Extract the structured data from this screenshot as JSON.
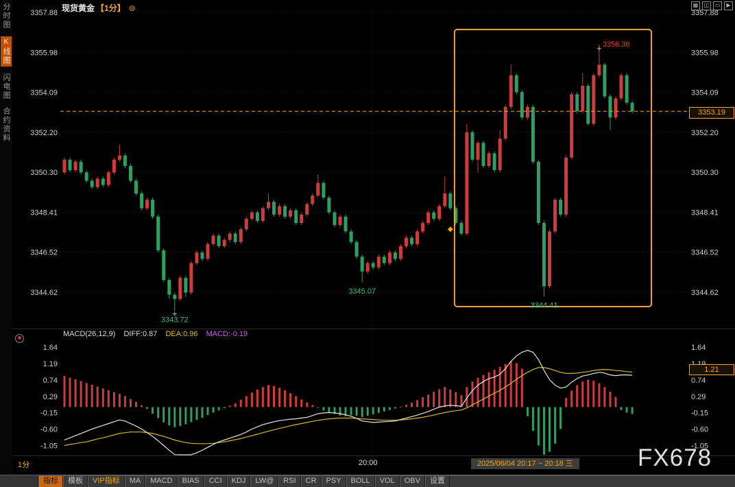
{
  "colors": {
    "up": "#cf3c3c",
    "down": "#2f9e62",
    "accent": "#f7a600",
    "diff_line": "#e6e6e6",
    "dea_line": "#d4b82a",
    "hist_up": "#cf3c3c",
    "hist_down": "#2f9e62",
    "annotation_high": "#f23c3c",
    "annotation_low": "#2fbf8f"
  },
  "header": {
    "title": "现货黄金",
    "period": "【1分】",
    "settings_icon": "⊜"
  },
  "window_controls": [
    "▦",
    "◫",
    "▭",
    "▶"
  ],
  "sidebar": {
    "items": [
      {
        "label": "分时图",
        "active": false
      },
      {
        "label": "K线图",
        "active": true
      },
      {
        "label": "闪电图",
        "active": false
      },
      {
        "label": "合约资料",
        "active": false
      }
    ]
  },
  "chart_data": {
    "type": "candlestick",
    "instrument": "现货黄金",
    "interval": "1分",
    "price_axis_labels": [
      "3357.88",
      "3355.98",
      "3354.09",
      "3352.20",
      "3350.30",
      "3348.41",
      "3346.52",
      "3344.62"
    ],
    "current_price": "3353.19",
    "highlight_box": {
      "start_index": 72,
      "end_index": 103
    },
    "annotations": [
      {
        "kind": "high",
        "text": "3356.36",
        "index": 97,
        "cross": true
      },
      {
        "kind": "low",
        "text": "3343.72",
        "index": 20,
        "cross": true
      },
      {
        "kind": "low",
        "text": "3345.07",
        "index": 54,
        "cross": false
      },
      {
        "kind": "low",
        "text": "3344.41",
        "index": 87,
        "cross": false
      },
      {
        "kind": "marker",
        "text": "",
        "index": 70,
        "price": 3347.6,
        "cross": false
      }
    ],
    "candles": [
      [
        3350.3,
        3351.0,
        3350.2,
        3350.9
      ],
      [
        3350.9,
        3351.0,
        3350.3,
        3350.4
      ],
      [
        3350.4,
        3350.9,
        3350.3,
        3350.8
      ],
      [
        3350.8,
        3350.9,
        3350.2,
        3350.3
      ],
      [
        3350.3,
        3350.4,
        3349.8,
        3349.9
      ],
      [
        3349.9,
        3350.0,
        3349.5,
        3349.6
      ],
      [
        3349.6,
        3350.1,
        3349.5,
        3350.0
      ],
      [
        3350.0,
        3350.1,
        3349.6,
        3349.7
      ],
      [
        3349.7,
        3350.4,
        3349.6,
        3350.3
      ],
      [
        3350.3,
        3351.0,
        3350.2,
        3350.9
      ],
      [
        3350.9,
        3351.6,
        3350.8,
        3351.1
      ],
      [
        3351.1,
        3351.2,
        3350.5,
        3350.6
      ],
      [
        3350.6,
        3350.7,
        3349.8,
        3349.9
      ],
      [
        3349.9,
        3350.0,
        3349.2,
        3349.3
      ],
      [
        3349.3,
        3349.4,
        3348.5,
        3348.6
      ],
      [
        3348.6,
        3349.1,
        3348.5,
        3349.0
      ],
      [
        3349.0,
        3349.1,
        3348.1,
        3348.2
      ],
      [
        3348.2,
        3348.3,
        3346.5,
        3346.6
      ],
      [
        3346.6,
        3346.7,
        3345.1,
        3345.2
      ],
      [
        3345.2,
        3345.3,
        3344.3,
        3344.5
      ],
      [
        3344.5,
        3344.6,
        3343.72,
        3344.3
      ],
      [
        3344.3,
        3345.4,
        3344.2,
        3345.3
      ],
      [
        3345.3,
        3345.4,
        3344.4,
        3344.6
      ],
      [
        3344.6,
        3346.1,
        3344.5,
        3346.0
      ],
      [
        3346.0,
        3346.6,
        3345.9,
        3346.5
      ],
      [
        3346.5,
        3346.6,
        3346.1,
        3346.2
      ],
      [
        3346.2,
        3347.0,
        3346.1,
        3346.9
      ],
      [
        3346.9,
        3347.4,
        3346.8,
        3347.3
      ],
      [
        3347.3,
        3347.4,
        3346.7,
        3346.8
      ],
      [
        3346.8,
        3347.2,
        3346.7,
        3347.1
      ],
      [
        3347.1,
        3347.5,
        3347.0,
        3347.4
      ],
      [
        3347.4,
        3347.5,
        3346.9,
        3347.0
      ],
      [
        3347.0,
        3347.7,
        3346.9,
        3347.6
      ],
      [
        3347.6,
        3348.2,
        3347.5,
        3348.1
      ],
      [
        3348.1,
        3348.5,
        3348.0,
        3348.4
      ],
      [
        3348.4,
        3348.5,
        3347.9,
        3348.0
      ],
      [
        3348.0,
        3348.7,
        3347.9,
        3348.6
      ],
      [
        3348.6,
        3349.3,
        3348.5,
        3348.9
      ],
      [
        3348.9,
        3349.0,
        3348.2,
        3348.3
      ],
      [
        3348.3,
        3348.8,
        3348.2,
        3348.7
      ],
      [
        3348.7,
        3348.8,
        3348.1,
        3348.2
      ],
      [
        3348.2,
        3348.6,
        3348.1,
        3348.5
      ],
      [
        3348.5,
        3348.6,
        3347.8,
        3347.9
      ],
      [
        3347.9,
        3348.4,
        3347.8,
        3348.3
      ],
      [
        3348.3,
        3348.9,
        3348.2,
        3348.8
      ],
      [
        3348.8,
        3349.3,
        3348.7,
        3349.2
      ],
      [
        3349.2,
        3350.2,
        3349.1,
        3349.8
      ],
      [
        3349.8,
        3349.9,
        3349.0,
        3349.1
      ],
      [
        3349.1,
        3349.2,
        3348.3,
        3348.4
      ],
      [
        3348.4,
        3348.5,
        3347.7,
        3347.8
      ],
      [
        3347.8,
        3348.3,
        3347.7,
        3348.2
      ],
      [
        3348.2,
        3348.3,
        3347.4,
        3347.5
      ],
      [
        3347.5,
        3347.6,
        3346.9,
        3347.0
      ],
      [
        3347.0,
        3347.1,
        3346.2,
        3346.3
      ],
      [
        3346.3,
        3346.4,
        3345.07,
        3345.6
      ],
      [
        3345.6,
        3346.1,
        3345.5,
        3346.0
      ],
      [
        3346.0,
        3346.1,
        3345.7,
        3345.8
      ],
      [
        3345.8,
        3346.4,
        3345.7,
        3346.3
      ],
      [
        3346.3,
        3346.4,
        3345.9,
        3346.0
      ],
      [
        3346.0,
        3346.6,
        3345.9,
        3346.5
      ],
      [
        3346.5,
        3346.6,
        3346.1,
        3346.2
      ],
      [
        3346.2,
        3346.9,
        3346.1,
        3346.8
      ],
      [
        3346.8,
        3347.3,
        3346.7,
        3347.2
      ],
      [
        3347.2,
        3347.3,
        3346.8,
        3346.9
      ],
      [
        3346.9,
        3347.6,
        3346.8,
        3347.5
      ],
      [
        3347.5,
        3348.0,
        3347.4,
        3347.9
      ],
      [
        3347.9,
        3348.5,
        3347.8,
        3348.4
      ],
      [
        3348.4,
        3348.5,
        3348.0,
        3348.1
      ],
      [
        3348.1,
        3348.8,
        3348.0,
        3348.7
      ],
      [
        3348.7,
        3350.1,
        3348.6,
        3349.3
      ],
      [
        3349.3,
        3349.4,
        3348.5,
        3348.6
      ],
      [
        3348.6,
        3348.7,
        3347.8,
        3347.9
      ],
      [
        3347.9,
        3348.0,
        3347.3,
        3347.4
      ],
      [
        3347.4,
        3352.6,
        3347.3,
        3352.2
      ],
      [
        3352.2,
        3352.3,
        3350.8,
        3350.9
      ],
      [
        3350.9,
        3351.8,
        3350.3,
        3351.7
      ],
      [
        3351.7,
        3351.8,
        3350.5,
        3350.6
      ],
      [
        3350.6,
        3351.3,
        3350.5,
        3351.2
      ],
      [
        3351.2,
        3351.3,
        3350.3,
        3350.4
      ],
      [
        3350.4,
        3352.3,
        3350.3,
        3351.9
      ],
      [
        3351.9,
        3353.5,
        3351.8,
        3353.4
      ],
      [
        3353.4,
        3355.4,
        3353.3,
        3354.9
      ],
      [
        3354.9,
        3355.0,
        3354.0,
        3354.1
      ],
      [
        3354.1,
        3354.2,
        3352.8,
        3352.9
      ],
      [
        3352.9,
        3353.5,
        3352.8,
        3353.4
      ],
      [
        3353.4,
        3353.5,
        3350.7,
        3350.8
      ],
      [
        3350.8,
        3350.9,
        3347.8,
        3347.9
      ],
      [
        3347.9,
        3348.0,
        3344.41,
        3344.9
      ],
      [
        3344.9,
        3347.6,
        3344.8,
        3347.5
      ],
      [
        3347.5,
        3349.1,
        3347.4,
        3349.0
      ],
      [
        3349.0,
        3349.1,
        3348.2,
        3348.3
      ],
      [
        3348.3,
        3351.1,
        3348.2,
        3351.0
      ],
      [
        3351.0,
        3354.1,
        3350.9,
        3354.0
      ],
      [
        3354.0,
        3354.1,
        3353.1,
        3353.2
      ],
      [
        3353.2,
        3355.0,
        3353.1,
        3354.4
      ],
      [
        3354.4,
        3354.5,
        3352.5,
        3352.6
      ],
      [
        3352.6,
        3355.0,
        3352.5,
        3354.9
      ],
      [
        3354.9,
        3356.36,
        3354.8,
        3355.4
      ],
      [
        3355.4,
        3355.5,
        3353.8,
        3353.9
      ],
      [
        3353.9,
        3354.0,
        3352.3,
        3352.9
      ],
      [
        3352.9,
        3353.9,
        3352.8,
        3353.8
      ],
      [
        3353.8,
        3355.0,
        3353.7,
        3354.9
      ],
      [
        3354.9,
        3355.0,
        3353.5,
        3353.6
      ],
      [
        3353.6,
        3353.7,
        3353.1,
        3353.19
      ]
    ],
    "macd": {
      "label": "MACD(26,12,9)",
      "diff_label": "DIFF:0.87",
      "dea_label": "DEA:0.96",
      "macd_label": "MACD:-0.19",
      "axis_labels": [
        "1.64",
        "1.19",
        "0.74",
        "0.29",
        "-0.15",
        "-0.60",
        "-1.05"
      ],
      "axis_highlight": "1.21",
      "hist": [
        0.85,
        0.8,
        0.76,
        0.71,
        0.66,
        0.61,
        0.56,
        0.51,
        0.46,
        0.41,
        0.36,
        0.3,
        0.22,
        0.14,
        0.05,
        -0.05,
        -0.18,
        -0.3,
        -0.42,
        -0.5,
        -0.55,
        -0.52,
        -0.47,
        -0.41,
        -0.35,
        -0.29,
        -0.22,
        -0.15,
        -0.09,
        -0.03,
        0.04,
        0.1,
        0.2,
        0.3,
        0.4,
        0.48,
        0.55,
        0.6,
        0.58,
        0.53,
        0.46,
        0.38,
        0.3,
        0.21,
        0.13,
        0.06,
        -0.02,
        -0.09,
        -0.14,
        -0.19,
        -0.23,
        -0.25,
        -0.22,
        -0.24,
        -0.27,
        -0.24,
        -0.2,
        -0.16,
        -0.12,
        -0.08,
        -0.04,
        0.01,
        0.06,
        0.12,
        0.19,
        0.27,
        0.34,
        0.42,
        0.49,
        0.55,
        0.48,
        0.41,
        0.33,
        0.55,
        0.7,
        0.8,
        0.88,
        0.95,
        1.02,
        1.1,
        1.18,
        1.25,
        1.2,
        1.05,
        -0.25,
        -0.65,
        -1.05,
        -1.3,
        -1.22,
        -1.0,
        -0.6,
        0.25,
        0.45,
        0.6,
        0.7,
        0.75,
        0.72,
        0.65,
        0.55,
        0.42,
        0.28,
        -0.08,
        -0.15,
        -0.19
      ],
      "diff": [
        -0.9,
        -0.84,
        -0.78,
        -0.72,
        -0.66,
        -0.6,
        -0.55,
        -0.5,
        -0.45,
        -0.4,
        -0.35,
        -0.38,
        -0.45,
        -0.52,
        -0.6,
        -0.7,
        -0.8,
        -0.92,
        -1.05,
        -1.18,
        -1.3,
        -1.35,
        -1.38,
        -1.32,
        -1.25,
        -1.18,
        -1.1,
        -1.02,
        -0.95,
        -0.9,
        -0.85,
        -0.8,
        -0.75,
        -0.68,
        -0.6,
        -0.54,
        -0.48,
        -0.44,
        -0.4,
        -0.37,
        -0.35,
        -0.33,
        -0.32,
        -0.3,
        -0.28,
        -0.23,
        -0.18,
        -0.16,
        -0.15,
        -0.16,
        -0.18,
        -0.21,
        -0.25,
        -0.31,
        -0.38,
        -0.4,
        -0.42,
        -0.41,
        -0.4,
        -0.39,
        -0.38,
        -0.34,
        -0.3,
        -0.26,
        -0.22,
        -0.17,
        -0.12,
        -0.06,
        0.0,
        0.03,
        0.05,
        0.04,
        0.02,
        0.25,
        0.45,
        0.6,
        0.7,
        0.78,
        0.82,
        0.9,
        1.05,
        1.25,
        1.4,
        1.5,
        1.55,
        1.5,
        1.3,
        1.0,
        0.75,
        0.6,
        0.52,
        0.55,
        0.68,
        0.78,
        0.85,
        0.88,
        0.92,
        0.95,
        0.93,
        0.88,
        0.86,
        0.88,
        0.88,
        0.87
      ],
      "dea": [
        -1.05,
        -1.02,
        -1.0,
        -0.97,
        -0.95,
        -0.91,
        -0.87,
        -0.84,
        -0.8,
        -0.76,
        -0.72,
        -0.7,
        -0.68,
        -0.68,
        -0.68,
        -0.7,
        -0.72,
        -0.76,
        -0.8,
        -0.85,
        -0.9,
        -0.94,
        -0.97,
        -0.99,
        -1.0,
        -1.0,
        -1.0,
        -0.99,
        -0.97,
        -0.95,
        -0.92,
        -0.89,
        -0.86,
        -0.82,
        -0.78,
        -0.74,
        -0.7,
        -0.66,
        -0.62,
        -0.58,
        -0.55,
        -0.51,
        -0.48,
        -0.45,
        -0.42,
        -0.39,
        -0.36,
        -0.34,
        -0.32,
        -0.31,
        -0.3,
        -0.3,
        -0.3,
        -0.31,
        -0.32,
        -0.33,
        -0.34,
        -0.35,
        -0.36,
        -0.36,
        -0.36,
        -0.35,
        -0.34,
        -0.32,
        -0.3,
        -0.28,
        -0.25,
        -0.22,
        -0.18,
        -0.15,
        -0.12,
        -0.1,
        -0.08,
        -0.02,
        0.06,
        0.14,
        0.22,
        0.3,
        0.38,
        0.46,
        0.55,
        0.65,
        0.76,
        0.86,
        0.95,
        1.03,
        1.08,
        1.08,
        1.05,
        1.0,
        0.95,
        0.92,
        0.92,
        0.93,
        0.95,
        0.97,
        1.0,
        1.02,
        1.03,
        1.02,
        1.0,
        0.99,
        0.97,
        0.96
      ]
    }
  },
  "time_axis": {
    "center_label": "20:00",
    "range_label": "2025/06/04 20:17 ~ 20:18 三"
  },
  "watermark": "FX678",
  "toolbar": {
    "period": "1分",
    "tabs": [
      {
        "label": "指标",
        "style": "active"
      },
      {
        "label": "模板",
        "style": "normal"
      },
      {
        "label": "VIP指标",
        "style": "vip"
      },
      {
        "label": "MA",
        "style": "normal"
      },
      {
        "label": "MACD",
        "style": "normal"
      },
      {
        "label": "BIAS",
        "style": "normal"
      },
      {
        "label": "CCI",
        "style": "normal"
      },
      {
        "label": "KDJ",
        "style": "normal"
      },
      {
        "label": "LW@",
        "style": "normal"
      },
      {
        "label": "RSI",
        "style": "normal"
      },
      {
        "label": "CR",
        "style": "normal"
      },
      {
        "label": "PSY",
        "style": "normal"
      },
      {
        "label": "BOLL",
        "style": "normal"
      },
      {
        "label": "VOL",
        "style": "normal"
      },
      {
        "label": "OBV",
        "style": "normal"
      },
      {
        "label": "设置",
        "style": "normal"
      }
    ]
  }
}
